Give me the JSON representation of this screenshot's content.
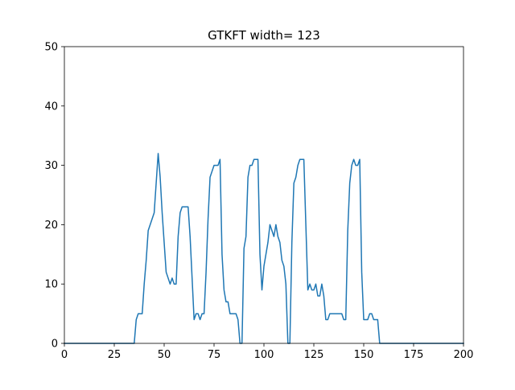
{
  "chart_data": {
    "type": "line",
    "title": "GTKFT width= 123",
    "xlabel": "",
    "ylabel": "",
    "xlim": [
      0,
      200
    ],
    "ylim": [
      0,
      50
    ],
    "x_ticks": [
      0,
      25,
      50,
      75,
      100,
      125,
      150,
      175,
      200
    ],
    "y_ticks": [
      0,
      10,
      20,
      30,
      40,
      50
    ],
    "grid": false,
    "legend": "none",
    "series": [
      {
        "color": "#1f77b4",
        "points": [
          [
            0,
            0
          ],
          [
            35,
            0
          ],
          [
            36,
            4
          ],
          [
            37,
            5
          ],
          [
            39,
            5
          ],
          [
            40,
            10
          ],
          [
            41,
            14
          ],
          [
            42,
            19
          ],
          [
            43,
            20
          ],
          [
            45,
            22
          ],
          [
            46,
            27
          ],
          [
            47,
            32
          ],
          [
            48,
            28
          ],
          [
            49,
            22
          ],
          [
            50,
            17
          ],
          [
            51,
            12
          ],
          [
            52,
            11
          ],
          [
            53,
            10
          ],
          [
            54,
            11
          ],
          [
            55,
            10
          ],
          [
            56,
            10
          ],
          [
            57,
            18
          ],
          [
            58,
            22
          ],
          [
            59,
            23
          ],
          [
            62,
            23
          ],
          [
            63,
            18
          ],
          [
            64,
            11
          ],
          [
            65,
            4
          ],
          [
            66,
            5
          ],
          [
            67,
            5
          ],
          [
            68,
            4
          ],
          [
            69,
            5
          ],
          [
            70,
            5
          ],
          [
            71,
            12
          ],
          [
            72,
            21
          ],
          [
            73,
            28
          ],
          [
            74,
            29
          ],
          [
            75,
            30
          ],
          [
            77,
            30
          ],
          [
            78,
            31
          ],
          [
            79,
            15
          ],
          [
            80,
            9
          ],
          [
            81,
            7
          ],
          [
            82,
            7
          ],
          [
            83,
            5
          ],
          [
            86,
            5
          ],
          [
            87,
            4
          ],
          [
            88,
            0
          ],
          [
            89,
            0
          ],
          [
            90,
            16
          ],
          [
            91,
            18
          ],
          [
            92,
            28
          ],
          [
            93,
            30
          ],
          [
            94,
            30
          ],
          [
            95,
            31
          ],
          [
            97,
            31
          ],
          [
            98,
            15
          ],
          [
            99,
            9
          ],
          [
            100,
            13
          ],
          [
            101,
            15
          ],
          [
            102,
            17
          ],
          [
            103,
            20
          ],
          [
            104,
            19
          ],
          [
            105,
            18
          ],
          [
            106,
            20
          ],
          [
            107,
            18
          ],
          [
            108,
            17
          ],
          [
            109,
            14
          ],
          [
            110,
            13
          ],
          [
            111,
            10
          ],
          [
            112,
            0
          ],
          [
            113,
            0
          ],
          [
            114,
            17
          ],
          [
            115,
            27
          ],
          [
            116,
            28
          ],
          [
            117,
            30
          ],
          [
            118,
            31
          ],
          [
            120,
            31
          ],
          [
            121,
            20
          ],
          [
            122,
            9
          ],
          [
            123,
            10
          ],
          [
            124,
            9
          ],
          [
            125,
            9
          ],
          [
            126,
            10
          ],
          [
            127,
            8
          ],
          [
            128,
            8
          ],
          [
            129,
            10
          ],
          [
            130,
            8
          ],
          [
            131,
            4
          ],
          [
            132,
            4
          ],
          [
            133,
            5
          ],
          [
            139,
            5
          ],
          [
            140,
            4
          ],
          [
            141,
            4
          ],
          [
            142,
            19
          ],
          [
            143,
            27
          ],
          [
            144,
            30
          ],
          [
            145,
            31
          ],
          [
            146,
            30
          ],
          [
            147,
            30
          ],
          [
            148,
            31
          ],
          [
            149,
            12
          ],
          [
            150,
            4
          ],
          [
            152,
            4
          ],
          [
            153,
            5
          ],
          [
            154,
            5
          ],
          [
            155,
            4
          ],
          [
            157,
            4
          ],
          [
            158,
            0
          ],
          [
            200,
            0
          ]
        ]
      }
    ]
  }
}
